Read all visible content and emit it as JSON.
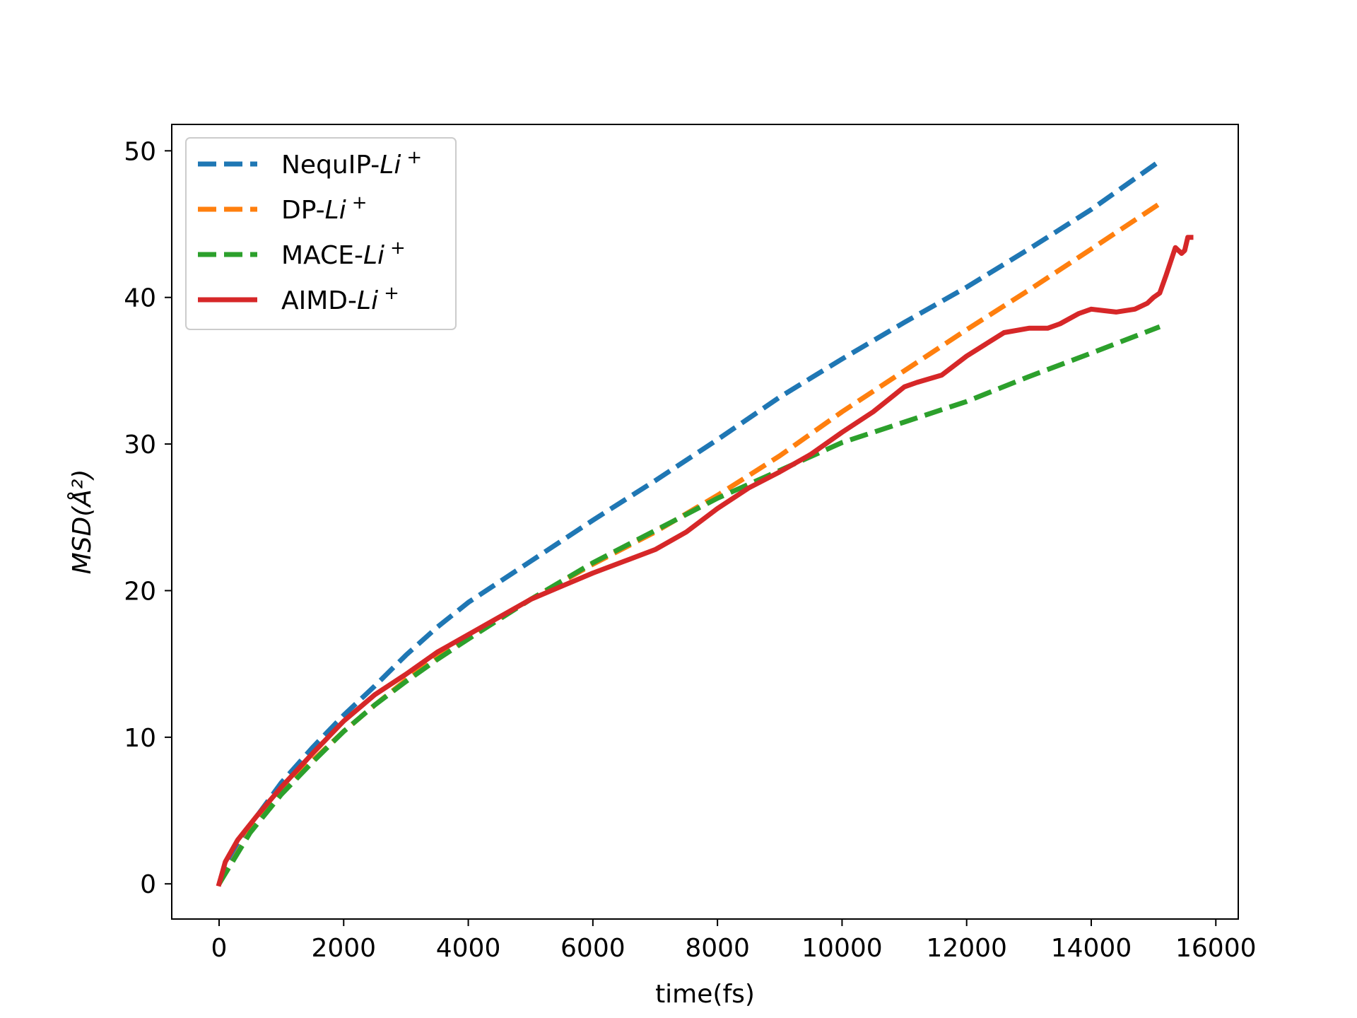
{
  "chart_data": {
    "type": "line",
    "title": "",
    "xlabel": "time(fs)",
    "ylabel": "MSD(Å²)",
    "xlim": [
      -760,
      16360
    ],
    "ylim": [
      -2.4,
      51.8
    ],
    "xticks": [
      0,
      2000,
      4000,
      6000,
      8000,
      10000,
      12000,
      14000,
      16000
    ],
    "yticks": [
      0,
      10,
      20,
      30,
      40,
      50
    ],
    "legend_position": "top-left",
    "grid": false,
    "series": [
      {
        "name": "NequIP-Li+",
        "name_base": "NequIP-",
        "name_ion": "Li",
        "name_sup": "+",
        "color": "#1f77b4",
        "style": "dashed",
        "x": [
          0,
          500,
          1000,
          1500,
          2000,
          2500,
          3000,
          3500,
          4000,
          5000,
          6000,
          7000,
          8000,
          9000,
          10000,
          11000,
          12000,
          13000,
          14000,
          15100
        ],
        "y": [
          0,
          4.0,
          6.9,
          9.3,
          11.5,
          13.5,
          15.6,
          17.5,
          19.2,
          22.0,
          24.8,
          27.5,
          30.3,
          33.2,
          35.8,
          38.3,
          40.7,
          43.3,
          46.0,
          49.3
        ]
      },
      {
        "name": "DP-Li+",
        "name_base": "DP-",
        "name_ion": "Li",
        "name_sup": "+",
        "color": "#ff7f0e",
        "style": "dashed",
        "x": [
          0,
          500,
          1000,
          1500,
          2000,
          2500,
          3000,
          3500,
          4000,
          5000,
          6000,
          7000,
          8000,
          9000,
          10000,
          11000,
          12000,
          13000,
          14000,
          15100
        ],
        "y": [
          0,
          3.6,
          6.3,
          8.4,
          10.4,
          12.2,
          13.9,
          15.4,
          16.8,
          19.4,
          21.8,
          24.0,
          26.5,
          29.2,
          32.2,
          35.0,
          37.8,
          40.5,
          43.3,
          46.4
        ]
      },
      {
        "name": "MACE-Li+",
        "name_base": "MACE-",
        "name_ion": "Li",
        "name_sup": "+",
        "color": "#2ca02c",
        "style": "dashed",
        "x": [
          0,
          500,
          1000,
          1500,
          2000,
          2500,
          3000,
          3500,
          4000,
          5000,
          6000,
          7000,
          8000,
          9000,
          10000,
          11000,
          12000,
          13000,
          14000,
          15100
        ],
        "y": [
          0,
          3.5,
          6.1,
          8.3,
          10.4,
          12.2,
          13.8,
          15.3,
          16.7,
          19.4,
          21.9,
          24.1,
          26.3,
          28.2,
          30.1,
          31.5,
          32.9,
          34.6,
          36.2,
          38.0
        ]
      },
      {
        "name": "AIMD-Li+",
        "name_base": "AIMD-",
        "name_ion": "Li",
        "name_sup": "+",
        "color": "#d62728",
        "style": "solid",
        "x": [
          0,
          100,
          300,
          600,
          1000,
          1500,
          2000,
          2500,
          3000,
          3500,
          4000,
          4500,
          5000,
          5500,
          6000,
          6500,
          7000,
          7500,
          8000,
          8500,
          9000,
          9500,
          10000,
          10500,
          11000,
          11200,
          11600,
          12000,
          12300,
          12600,
          13000,
          13300,
          13500,
          13800,
          14000,
          14200,
          14400,
          14700,
          14900,
          15000,
          15100,
          15200,
          15350,
          15450,
          15500,
          15550,
          15600
        ],
        "y": [
          0,
          1.5,
          3.0,
          4.6,
          6.6,
          8.9,
          11.1,
          12.9,
          14.3,
          15.8,
          17.0,
          18.2,
          19.4,
          20.3,
          21.2,
          22.0,
          22.8,
          24.0,
          25.6,
          27.0,
          28.1,
          29.3,
          30.8,
          32.2,
          33.9,
          34.2,
          34.7,
          36.0,
          36.8,
          37.6,
          37.9,
          37.9,
          38.2,
          38.9,
          39.2,
          39.1,
          39.0,
          39.2,
          39.6,
          40.0,
          40.3,
          41.5,
          43.4,
          43.0,
          43.2,
          44.1,
          44.1
        ]
      }
    ]
  }
}
